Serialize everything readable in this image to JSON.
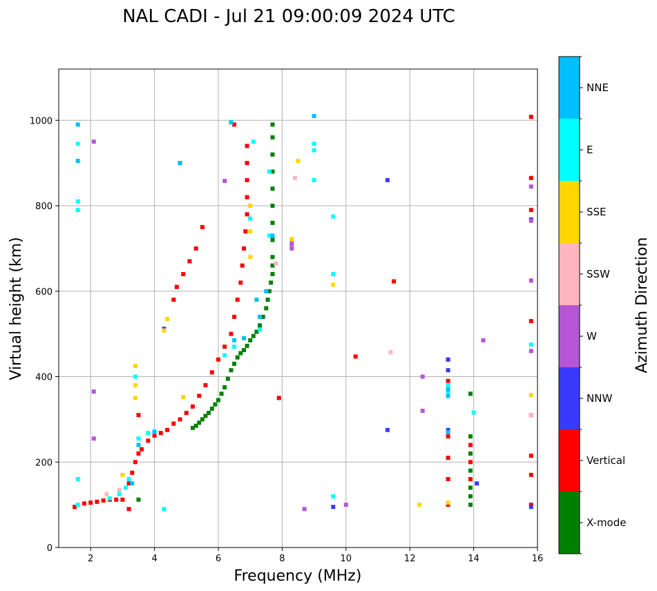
{
  "chart_data": {
    "type": "scatter",
    "title": "NAL CADI - Jul 21 09:00:09 2024 UTC",
    "xlabel": "Frequency (MHz)",
    "ylabel": "Virtual height (km)",
    "xlim": [
      1,
      16
    ],
    "ylim": [
      0,
      1120
    ],
    "xticks": [
      2,
      4,
      6,
      8,
      10,
      12,
      14,
      16
    ],
    "yticks": [
      0,
      200,
      400,
      600,
      800,
      1000
    ],
    "grid": true,
    "colorbar": {
      "title": "Azimuth Direction",
      "categories": [
        {
          "label": "X-mode",
          "color": "#008000"
        },
        {
          "label": "Vertical",
          "color": "#ff0000"
        },
        {
          "label": "NNW",
          "color": "#3a3aff"
        },
        {
          "label": "W",
          "color": "#b556d6"
        },
        {
          "label": "SSW",
          "color": "#ffb6c1"
        },
        {
          "label": "SSE",
          "color": "#ffd700"
        },
        {
          "label": "E",
          "color": "#00ffff"
        },
        {
          "label": "NNE",
          "color": "#00bfff"
        }
      ]
    },
    "series": [
      {
        "name": "X-mode",
        "points": [
          [
            3.5,
            112
          ],
          [
            5.2,
            280
          ],
          [
            5.3,
            285
          ],
          [
            5.4,
            292
          ],
          [
            5.5,
            300
          ],
          [
            5.6,
            308
          ],
          [
            5.7,
            315
          ],
          [
            5.8,
            325
          ],
          [
            5.9,
            335
          ],
          [
            6.0,
            345
          ],
          [
            6.1,
            360
          ],
          [
            6.2,
            375
          ],
          [
            6.3,
            395
          ],
          [
            6.4,
            415
          ],
          [
            6.5,
            430
          ],
          [
            6.6,
            445
          ],
          [
            6.7,
            455
          ],
          [
            6.8,
            462
          ],
          [
            6.9,
            472
          ],
          [
            7.0,
            485
          ],
          [
            7.1,
            495
          ],
          [
            7.2,
            505
          ],
          [
            7.3,
            520
          ],
          [
            7.4,
            540
          ],
          [
            7.5,
            560
          ],
          [
            7.55,
            580
          ],
          [
            7.6,
            600
          ],
          [
            7.65,
            620
          ],
          [
            7.7,
            640
          ],
          [
            7.7,
            660
          ],
          [
            7.7,
            680
          ],
          [
            7.7,
            720
          ],
          [
            7.7,
            760
          ],
          [
            7.7,
            800
          ],
          [
            7.7,
            840
          ],
          [
            7.7,
            880
          ],
          [
            7.7,
            920
          ],
          [
            7.7,
            960
          ],
          [
            7.7,
            990
          ],
          [
            13.9,
            100
          ],
          [
            13.9,
            120
          ],
          [
            13.9,
            140
          ],
          [
            13.9,
            180
          ],
          [
            13.9,
            220
          ],
          [
            13.9,
            260
          ],
          [
            13.9,
            360
          ]
        ]
      },
      {
        "name": "Vertical",
        "points": [
          [
            1.5,
            95
          ],
          [
            1.8,
            103
          ],
          [
            2.0,
            105
          ],
          [
            2.2,
            107
          ],
          [
            2.4,
            110
          ],
          [
            2.6,
            112
          ],
          [
            2.8,
            112
          ],
          [
            3.0,
            112
          ],
          [
            3.2,
            150
          ],
          [
            3.3,
            175
          ],
          [
            3.4,
            200
          ],
          [
            3.5,
            220
          ],
          [
            3.6,
            230
          ],
          [
            3.8,
            250
          ],
          [
            4.0,
            262
          ],
          [
            4.2,
            268
          ],
          [
            4.4,
            275
          ],
          [
            4.6,
            290
          ],
          [
            4.8,
            300
          ],
          [
            5.0,
            315
          ],
          [
            5.2,
            330
          ],
          [
            5.4,
            355
          ],
          [
            5.6,
            380
          ],
          [
            5.8,
            410
          ],
          [
            6.0,
            440
          ],
          [
            6.2,
            470
          ],
          [
            6.4,
            500
          ],
          [
            6.5,
            540
          ],
          [
            6.6,
            580
          ],
          [
            6.7,
            620
          ],
          [
            6.75,
            660
          ],
          [
            6.8,
            700
          ],
          [
            6.85,
            740
          ],
          [
            6.9,
            780
          ],
          [
            6.9,
            820
          ],
          [
            6.9,
            860
          ],
          [
            6.9,
            900
          ],
          [
            6.9,
            940
          ],
          [
            6.5,
            990
          ],
          [
            3.5,
            310
          ],
          [
            4.6,
            580
          ],
          [
            4.7,
            610
          ],
          [
            4.9,
            640
          ],
          [
            5.1,
            670
          ],
          [
            5.3,
            700
          ],
          [
            5.5,
            750
          ],
          [
            3.2,
            90
          ],
          [
            7.9,
            350
          ],
          [
            10.3,
            447
          ],
          [
            11.5,
            623
          ],
          [
            15.8,
            100
          ],
          [
            15.8,
            170
          ],
          [
            15.8,
            215
          ],
          [
            15.8,
            310
          ],
          [
            15.8,
            530
          ],
          [
            15.8,
            790
          ],
          [
            15.8,
            865
          ],
          [
            15.8,
            1008
          ],
          [
            13.2,
            100
          ],
          [
            13.2,
            160
          ],
          [
            13.2,
            210
          ],
          [
            13.2,
            260
          ],
          [
            13.2,
            390
          ],
          [
            13.2,
            440
          ],
          [
            13.9,
            160
          ],
          [
            13.9,
            200
          ],
          [
            13.9,
            240
          ]
        ]
      },
      {
        "name": "NNW",
        "points": [
          [
            4.3,
            512
          ],
          [
            4.8,
            900
          ],
          [
            11.3,
            860
          ],
          [
            13.2,
            275
          ],
          [
            13.2,
            415
          ],
          [
            13.2,
            440
          ],
          [
            14.1,
            150
          ],
          [
            11.3,
            275
          ],
          [
            9.6,
            95
          ],
          [
            15.8,
            95
          ],
          [
            15.8,
            768
          ]
        ]
      },
      {
        "name": "W",
        "points": [
          [
            8.3,
            700
          ],
          [
            8.3,
            710
          ],
          [
            8.3,
            720
          ],
          [
            12.4,
            400
          ],
          [
            12.4,
            320
          ],
          [
            8.7,
            90
          ],
          [
            10.0,
            100
          ],
          [
            14.3,
            485
          ],
          [
            15.8,
            460
          ],
          [
            15.8,
            625
          ],
          [
            15.8,
            765
          ],
          [
            15.8,
            845
          ],
          [
            6.2,
            858
          ],
          [
            2.1,
            255
          ],
          [
            2.1,
            365
          ],
          [
            2.1,
            950
          ]
        ]
      },
      {
        "name": "SSW",
        "points": [
          [
            2.5,
            125
          ],
          [
            2.9,
            135
          ],
          [
            8.4,
            865
          ],
          [
            7.8,
            665
          ],
          [
            11.4,
            457
          ],
          [
            15.8,
            310
          ]
        ]
      },
      {
        "name": "SSE",
        "points": [
          [
            3.4,
            350
          ],
          [
            3.4,
            380
          ],
          [
            3.4,
            425
          ],
          [
            4.3,
            508
          ],
          [
            4.4,
            535
          ],
          [
            7.0,
            680
          ],
          [
            7.0,
            740
          ],
          [
            7.0,
            800
          ],
          [
            8.5,
            905
          ],
          [
            8.3,
            722
          ],
          [
            9.6,
            615
          ],
          [
            12.3,
            100
          ],
          [
            13.2,
            105
          ],
          [
            15.8,
            357
          ],
          [
            4.9,
            352
          ],
          [
            3.0,
            170
          ]
        ]
      },
      {
        "name": "E",
        "points": [
          [
            1.6,
            100
          ],
          [
            2.6,
            115
          ],
          [
            2.9,
            125
          ],
          [
            3.1,
            140
          ],
          [
            3.2,
            160
          ],
          [
            3.4,
            400
          ],
          [
            3.5,
            255
          ],
          [
            3.8,
            268
          ],
          [
            4.0,
            272
          ],
          [
            4.3,
            90
          ],
          [
            6.2,
            450
          ],
          [
            6.5,
            470
          ],
          [
            7.0,
            770
          ],
          [
            7.1,
            950
          ],
          [
            7.3,
            510
          ],
          [
            7.6,
            730
          ],
          [
            7.6,
            880
          ],
          [
            9.0,
            930
          ],
          [
            9.0,
            945
          ],
          [
            9.0,
            860
          ],
          [
            9.6,
            775
          ],
          [
            9.6,
            640
          ],
          [
            9.6,
            120
          ],
          [
            13.2,
            365
          ],
          [
            13.2,
            380
          ],
          [
            14.0,
            316
          ],
          [
            15.8,
            475
          ],
          [
            1.6,
            160
          ],
          [
            1.6,
            790
          ],
          [
            1.6,
            810
          ],
          [
            1.6,
            945
          ]
        ]
      },
      {
        "name": "NNE",
        "points": [
          [
            3.3,
            150
          ],
          [
            3.5,
            240
          ],
          [
            4.0,
            270
          ],
          [
            4.8,
            900
          ],
          [
            6.4,
            995
          ],
          [
            6.5,
            485
          ],
          [
            6.8,
            490
          ],
          [
            7.2,
            580
          ],
          [
            7.3,
            540
          ],
          [
            7.5,
            600
          ],
          [
            7.7,
            730
          ],
          [
            9.0,
            1010
          ],
          [
            13.2,
            355
          ],
          [
            13.2,
            370
          ],
          [
            13.2,
            270
          ],
          [
            1.6,
            990
          ],
          [
            1.6,
            905
          ]
        ]
      }
    ]
  }
}
